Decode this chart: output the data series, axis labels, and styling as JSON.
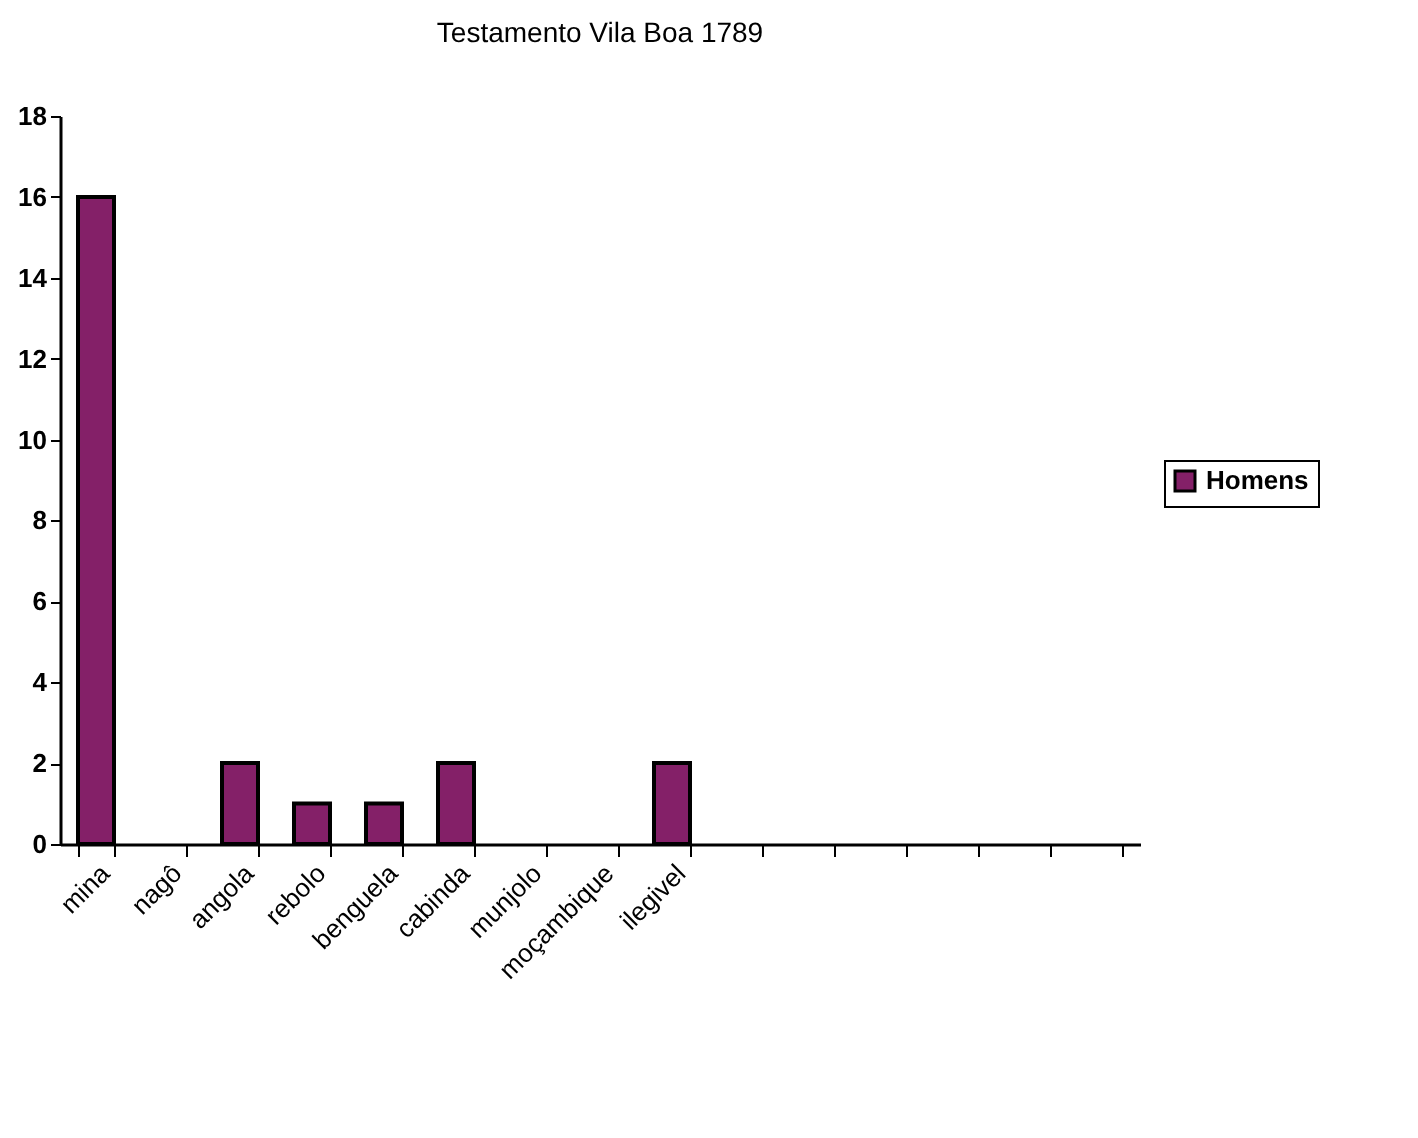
{
  "chart_data": {
    "type": "bar",
    "title": "Testamento Vila Boa 1789",
    "categories": [
      "mina",
      "nagô",
      "angola",
      "rebolo",
      "benguela",
      "cabinda",
      "munjolo",
      "moçambique",
      "ilegivel",
      null,
      null,
      null,
      null,
      null,
      null
    ],
    "series": [
      {
        "name": "Homens",
        "color": "#842068",
        "values": [
          16,
          null,
          2,
          1,
          1,
          2,
          null,
          null,
          2,
          null,
          null,
          null,
          null,
          null,
          null
        ]
      }
    ],
    "ylim": [
      0,
      18
    ],
    "yticks": [
      0,
      2,
      4,
      6,
      8,
      10,
      12,
      14,
      16,
      18
    ],
    "grid": false,
    "legend": "right"
  }
}
